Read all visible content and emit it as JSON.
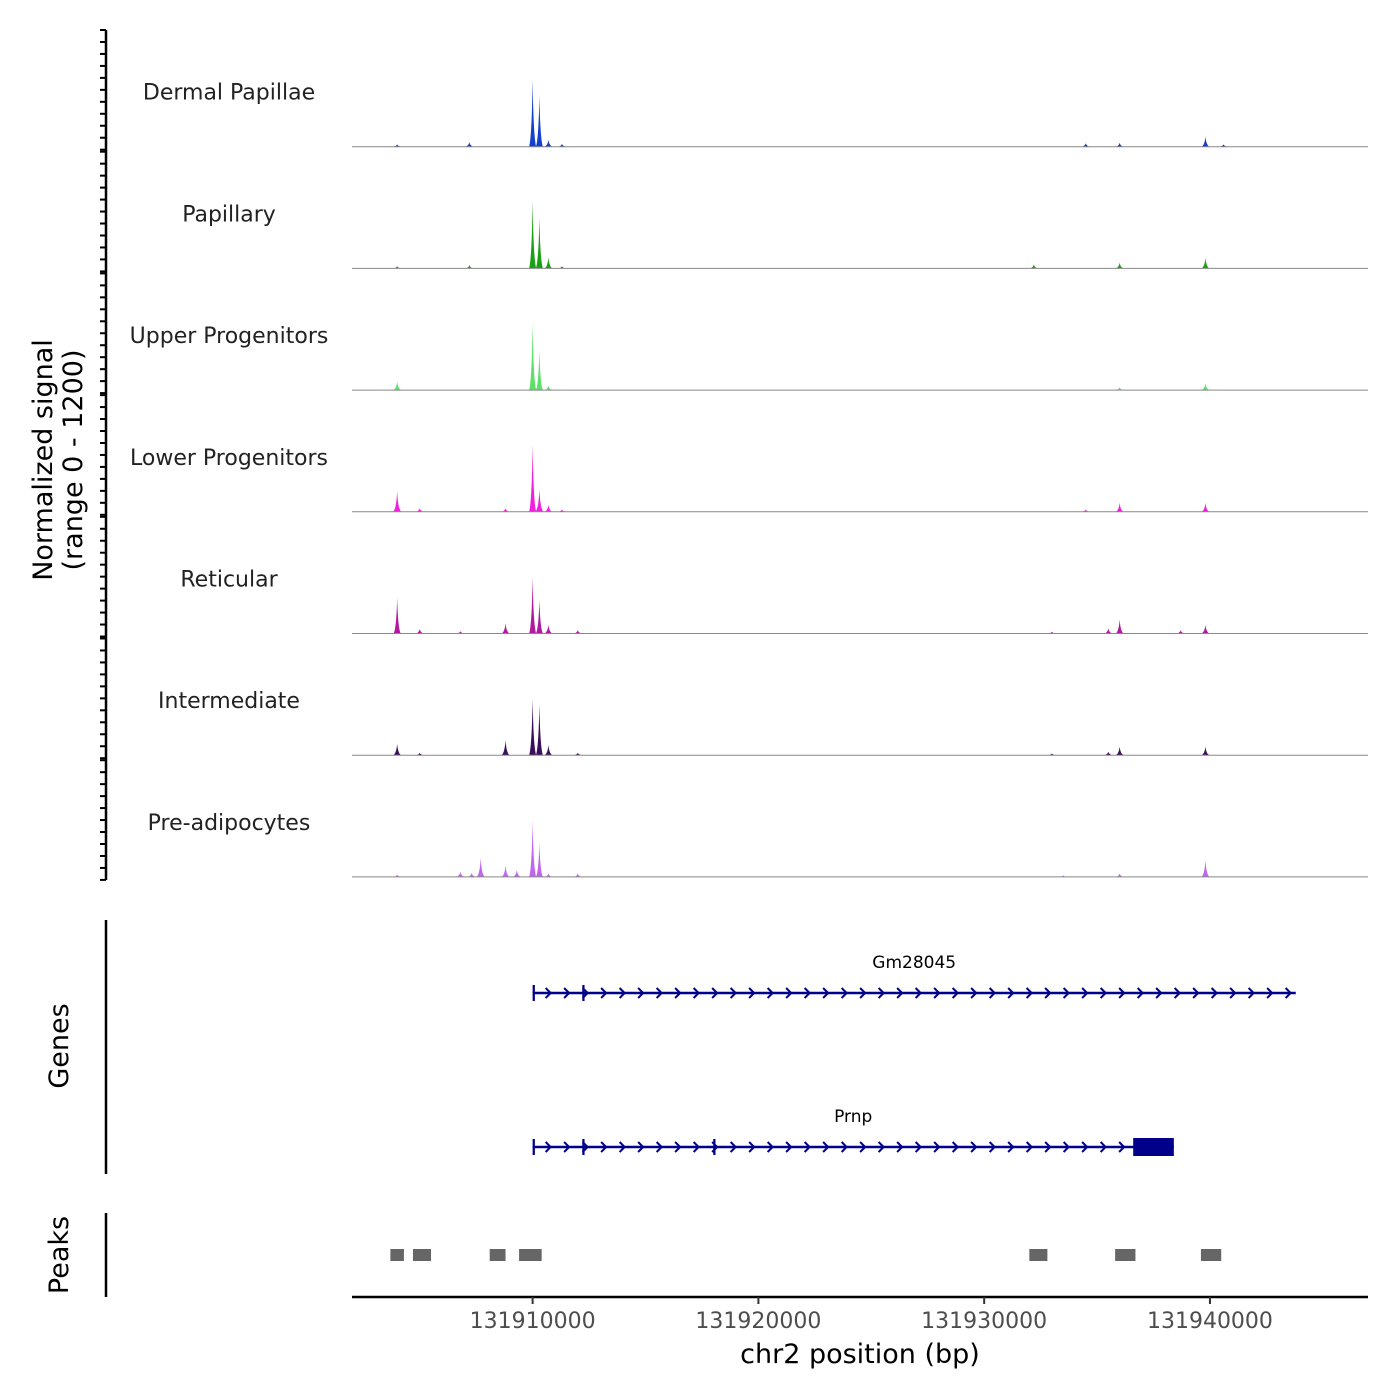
{
  "chart_data": {
    "type": "area",
    "title": "",
    "ylabel_line1": "Normalized signal",
    "ylabel_line2": "(range 0 - 1200)",
    "y_range": [
      0,
      1200
    ],
    "xlabel": "chr2 position (bp)",
    "xlim": [
      131902000,
      131947000
    ],
    "x_ticks": [
      131910000,
      131920000,
      131930000,
      131940000
    ],
    "x_tick_labels": [
      "131910000",
      "131920000",
      "131930000",
      "131940000"
    ],
    "series": [
      {
        "name": "Dermal Papillae",
        "color": "#1440d0",
        "peaks": [
          [
            131904000,
            40
          ],
          [
            131907200,
            80
          ],
          [
            131910000,
            1200
          ],
          [
            131910300,
            900
          ],
          [
            131910700,
            120
          ],
          [
            131911300,
            50
          ],
          [
            131934500,
            60
          ],
          [
            131936000,
            70
          ],
          [
            131939800,
            180
          ],
          [
            131940600,
            40
          ]
        ]
      },
      {
        "name": "Papillary",
        "color": "#1aa012",
        "peaks": [
          [
            131904000,
            40
          ],
          [
            131907200,
            60
          ],
          [
            131910000,
            1200
          ],
          [
            131910300,
            900
          ],
          [
            131910700,
            200
          ],
          [
            131911300,
            40
          ],
          [
            131932200,
            70
          ],
          [
            131936000,
            100
          ],
          [
            131939800,
            190
          ]
        ]
      },
      {
        "name": "Upper Progenitors",
        "color": "#5de06a",
        "peaks": [
          [
            131904000,
            150
          ],
          [
            131910000,
            1200
          ],
          [
            131910300,
            700
          ],
          [
            131910700,
            80
          ],
          [
            131936000,
            50
          ],
          [
            131939800,
            120
          ]
        ]
      },
      {
        "name": "Lower Progenitors",
        "color": "#ee22dd",
        "peaks": [
          [
            131904000,
            370
          ],
          [
            131905000,
            60
          ],
          [
            131908800,
            60
          ],
          [
            131910000,
            1200
          ],
          [
            131910300,
            400
          ],
          [
            131910700,
            120
          ],
          [
            131911300,
            40
          ],
          [
            131934500,
            40
          ],
          [
            131936000,
            160
          ],
          [
            131939800,
            160
          ]
        ]
      },
      {
        "name": "Reticular",
        "color": "#b01aa0",
        "peaks": [
          [
            131904000,
            630
          ],
          [
            131905000,
            80
          ],
          [
            131906800,
            40
          ],
          [
            131908800,
            180
          ],
          [
            131910000,
            1000
          ],
          [
            131910300,
            600
          ],
          [
            131910700,
            150
          ],
          [
            131912000,
            60
          ],
          [
            131933000,
            30
          ],
          [
            131935500,
            90
          ],
          [
            131936000,
            250
          ],
          [
            131938700,
            60
          ],
          [
            131939800,
            150
          ]
        ]
      },
      {
        "name": "Intermediate",
        "color": "#3a0f5c",
        "peaks": [
          [
            131904000,
            200
          ],
          [
            131905000,
            40
          ],
          [
            131908800,
            270
          ],
          [
            131910000,
            1000
          ],
          [
            131910300,
            900
          ],
          [
            131910700,
            180
          ],
          [
            131912000,
            40
          ],
          [
            131933000,
            30
          ],
          [
            131935500,
            60
          ],
          [
            131936000,
            150
          ],
          [
            131939800,
            150
          ]
        ]
      },
      {
        "name": "Pre-adipocytes",
        "color": "#c066ee",
        "peaks": [
          [
            131904000,
            40
          ],
          [
            131906800,
            90
          ],
          [
            131907700,
            340
          ],
          [
            131907300,
            70
          ],
          [
            131908800,
            200
          ],
          [
            131909300,
            120
          ],
          [
            131910000,
            1000
          ],
          [
            131910300,
            600
          ],
          [
            131910700,
            60
          ],
          [
            131912000,
            60
          ],
          [
            131933500,
            30
          ],
          [
            131936000,
            60
          ],
          [
            131939800,
            300
          ]
        ]
      }
    ],
    "genes": [
      {
        "name": "Gm28045",
        "strand": "+",
        "start": 131910000,
        "end": 131943800,
        "exons": [
          [
            131910000,
            131910100
          ],
          [
            131912200,
            131912300
          ]
        ]
      },
      {
        "name": "Prnp",
        "strand": "+",
        "start": 131910000,
        "end": 131938400,
        "exons": [
          [
            131910000,
            131910100
          ],
          [
            131912200,
            131912300
          ],
          [
            131918000,
            131918100
          ],
          [
            131936600,
            131938400
          ]
        ]
      }
    ],
    "peaks": [
      [
        131903700,
        131904300
      ],
      [
        131904700,
        131905500
      ],
      [
        131908100,
        131908800
      ],
      [
        131909400,
        131910400
      ],
      [
        131932000,
        131932800
      ],
      [
        131935800,
        131936700
      ],
      [
        131939600,
        131940500
      ]
    ],
    "panel_labels": {
      "genes": "Genes",
      "peaks": "Peaks"
    },
    "colors": {
      "gene": "#00008b",
      "peak": "#666666",
      "baseline": "#888888"
    }
  }
}
